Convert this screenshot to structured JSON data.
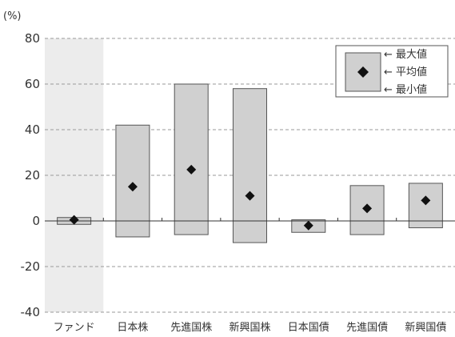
{
  "chart_data": {
    "type": "range-bar",
    "y_unit_label": "(%)",
    "ylim": [
      -40,
      80
    ],
    "y_ticks": [
      "80",
      "60",
      "40",
      "20",
      "0",
      "-20",
      "-40"
    ],
    "categories": [
      "ファンド",
      "日本株",
      "先進国株",
      "新興国株",
      "日本国債",
      "先進国債",
      "新興国債"
    ],
    "max": [
      1.5,
      42,
      60,
      58,
      0.5,
      15.5,
      16.5
    ],
    "mean": [
      0.5,
      15,
      22.5,
      11,
      -2,
      5.5,
      9
    ],
    "min": [
      -1.5,
      -7,
      -6,
      -9.5,
      -5,
      -6,
      -3
    ],
    "highlight_category": "ファンド",
    "grid": "horizontal dashed",
    "legend": {
      "position": "top-right",
      "max_label": "← 最大値",
      "mean_label": "← 平均値",
      "min_label": "← 最小値"
    },
    "colors": {
      "bar_fill": "#d0d0d0",
      "bar_stroke": "#555555",
      "highlight_bg": "#ececec",
      "marker": "#111111"
    }
  }
}
